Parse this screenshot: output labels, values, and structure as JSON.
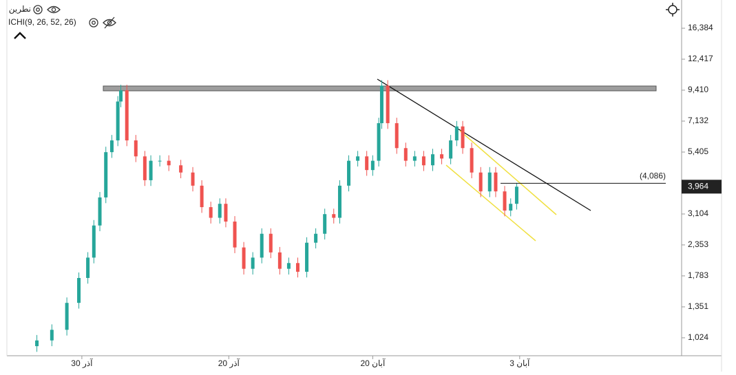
{
  "chart_data": {
    "type": "candlestick",
    "title": "نطرین",
    "indicator": "ICHI(9, 26, 52, 26)",
    "log_scale": true,
    "grid": false,
    "up_color": "#26a69a",
    "down_color": "#ef5350",
    "x": [
      10,
      15,
      20,
      24,
      27,
      29,
      31,
      33,
      35,
      37,
      38,
      40,
      43,
      46,
      48,
      51,
      54,
      58,
      62,
      65,
      68,
      71,
      73,
      76,
      79,
      82,
      85,
      88,
      91,
      94,
      97,
      100,
      103,
      106,
      109,
      111,
      114,
      117,
      120,
      122,
      124,
      125,
      127,
      130,
      133,
      136,
      139,
      142,
      145,
      148,
      150,
      152,
      155,
      158,
      161,
      163,
      166,
      168,
      170
    ],
    "open": [
      950,
      1000,
      1100,
      1400,
      1750,
      2100,
      2800,
      3600,
      5400,
      6000,
      8500,
      9400,
      6000,
      5200,
      4200,
      5000,
      5000,
      4800,
      4500,
      4000,
      3300,
      3000,
      3400,
      2900,
      2300,
      1900,
      2100,
      2600,
      2200,
      1900,
      2000,
      1850,
      2400,
      2600,
      3100,
      3000,
      4000,
      5000,
      5200,
      4600,
      5000,
      7000,
      9800,
      7000,
      5600,
      5000,
      5200,
      4800,
      5300,
      5100,
      6000,
      6800,
      5600,
      4500,
      3800,
      4500,
      3800,
      3200,
      3400
    ],
    "high": [
      1050,
      1155,
      1470,
      1838,
      2205,
      2940,
      3780,
      5670,
      6300,
      8925,
      9870,
      9870,
      6300,
      5460,
      5250,
      5250,
      5250,
      5040,
      4725,
      4200,
      3465,
      3570,
      3570,
      3045,
      2415,
      2205,
      2730,
      2730,
      2310,
      2100,
      2100,
      2520,
      2730,
      3255,
      3255,
      4200,
      5250,
      5460,
      5460,
      5250,
      7350,
      10290,
      10290,
      7350,
      5880,
      5460,
      5460,
      5565,
      5565,
      6300,
      7140,
      7140,
      5880,
      4725,
      4725,
      4725,
      3990,
      3570,
      4100
    ],
    "low": [
      903,
      950,
      1045,
      1330,
      1663,
      1995,
      2660,
      3420,
      5130,
      5700,
      8075,
      5700,
      4940,
      3990,
      3990,
      4750,
      4560,
      4275,
      3800,
      3135,
      2850,
      2850,
      2755,
      2185,
      1805,
      1805,
      1995,
      2090,
      1805,
      1805,
      1758,
      1758,
      2280,
      2470,
      2850,
      2850,
      3800,
      4750,
      4370,
      4370,
      4750,
      6650,
      6650,
      5320,
      4750,
      4750,
      4560,
      4560,
      4845,
      4845,
      5700,
      5320,
      4275,
      3610,
      3610,
      3610,
      3040,
      3040,
      3230
    ],
    "close": [
      1000,
      1100,
      1400,
      1750,
      2100,
      2800,
      3600,
      5400,
      6000,
      8500,
      9400,
      6000,
      5200,
      4200,
      5000,
      5000,
      4800,
      4500,
      4000,
      3300,
      3000,
      3400,
      2900,
      2300,
      1900,
      2100,
      2600,
      2200,
      1900,
      2000,
      1850,
      2400,
      2600,
      3100,
      3000,
      4000,
      5000,
      5200,
      4600,
      5000,
      7000,
      9800,
      7000,
      5600,
      5000,
      5200,
      4800,
      5300,
      5100,
      6000,
      6800,
      5600,
      4500,
      3800,
      4500,
      3800,
      3200,
      3400,
      3964
    ],
    "xlim": [
      0,
      225
    ],
    "xticks": [
      {
        "value": 25,
        "label": "30 آذر"
      },
      {
        "value": 74,
        "label": "20 آذر"
      },
      {
        "value": 122,
        "label": "20 آبان"
      },
      {
        "value": 171,
        "label": "3 آبان"
      }
    ],
    "ylim": [
      872,
      21100
    ],
    "yticks": [
      {
        "value": 1024,
        "label": "1,024"
      },
      {
        "value": 1351,
        "label": "1,351"
      },
      {
        "value": 1783,
        "label": "1,783"
      },
      {
        "value": 2353,
        "label": "2,353"
      },
      {
        "value": 3104,
        "label": "3,104"
      },
      {
        "value": 5405,
        "label": "5,405"
      },
      {
        "value": 7132,
        "label": "7,132"
      },
      {
        "value": 9410,
        "label": "9,410"
      },
      {
        "value": 12417,
        "label": "12,417"
      },
      {
        "value": 16384,
        "label": "16,384"
      }
    ],
    "last_price": {
      "value": 3964,
      "label": "3,964"
    },
    "price_line": {
      "value": 4086,
      "label": "(4,086)"
    }
  }
}
